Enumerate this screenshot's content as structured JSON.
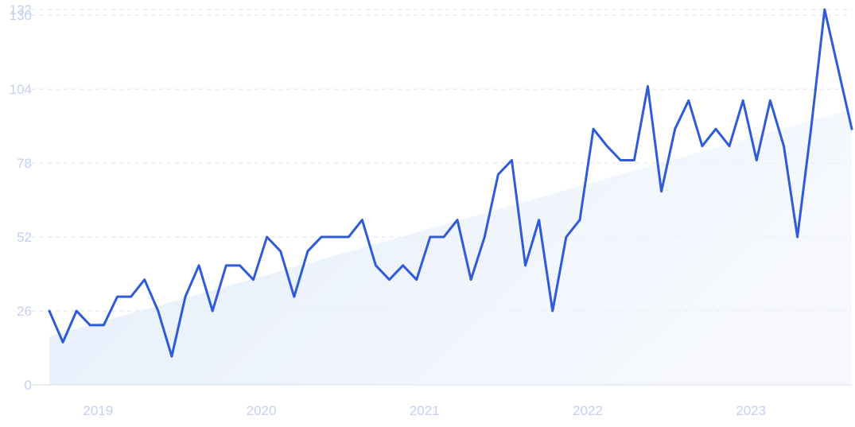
{
  "colors": {
    "line": "#2f5bd8",
    "trend_fill": "#e3edfb",
    "tick_text": "#c5cff0",
    "grid": "#dbe2f2",
    "background": "#ffffff"
  },
  "chart_data": {
    "type": "line",
    "title": "",
    "xlabel": "",
    "ylabel": "",
    "grid": true,
    "legend": "none",
    "ylim": [
      0,
      132
    ],
    "y_ticks": [
      "0",
      "26",
      "52",
      "78",
      "104",
      "130",
      "132"
    ],
    "x_tick_labels": [
      "2019",
      "2020",
      "2021",
      "2022",
      "2023"
    ],
    "x_tick_values": [
      "2019-01",
      "2020-01",
      "2021-01",
      "2022-01",
      "2023-01"
    ],
    "x_range": [
      "2018-10",
      "2023-09"
    ],
    "series": [
      {
        "kind": "line",
        "x": [
          "2018-10",
          "2018-11",
          "2018-12",
          "2019-01",
          "2019-02",
          "2019-03",
          "2019-04",
          "2019-05",
          "2019-06",
          "2019-07",
          "2019-08",
          "2019-09",
          "2019-10",
          "2019-11",
          "2019-12",
          "2020-01",
          "2020-02",
          "2020-03",
          "2020-04",
          "2020-05",
          "2020-06",
          "2020-07",
          "2020-08",
          "2020-09",
          "2020-10",
          "2020-11",
          "2020-12",
          "2021-01",
          "2021-02",
          "2021-03",
          "2021-04",
          "2021-05",
          "2021-06",
          "2021-07",
          "2021-08",
          "2021-09",
          "2021-10",
          "2021-11",
          "2021-12",
          "2022-01",
          "2022-02",
          "2022-03",
          "2022-04",
          "2022-05",
          "2022-06",
          "2022-07",
          "2022-08",
          "2022-09",
          "2022-10",
          "2022-11",
          "2022-12",
          "2023-01",
          "2023-02",
          "2023-03",
          "2023-04",
          "2023-05",
          "2023-06",
          "2023-07",
          "2023-08",
          "2023-09"
        ],
        "values": [
          26,
          15,
          26,
          21,
          21,
          31,
          31,
          37,
          26,
          10,
          31,
          42,
          26,
          42,
          42,
          37,
          52,
          47,
          31,
          47,
          52,
          52,
          52,
          58,
          42,
          37,
          42,
          37,
          52,
          52,
          58,
          37,
          52,
          74,
          79,
          42,
          58,
          26,
          52,
          58,
          90,
          84,
          79,
          79,
          105,
          68,
          90,
          100,
          84,
          90,
          84,
          100,
          79,
          100,
          84,
          52,
          90,
          132,
          111,
          90
        ]
      },
      {
        "kind": "trend-area",
        "x": [
          "2018-10",
          "2023-09"
        ],
        "values": [
          17,
          97
        ]
      }
    ]
  }
}
